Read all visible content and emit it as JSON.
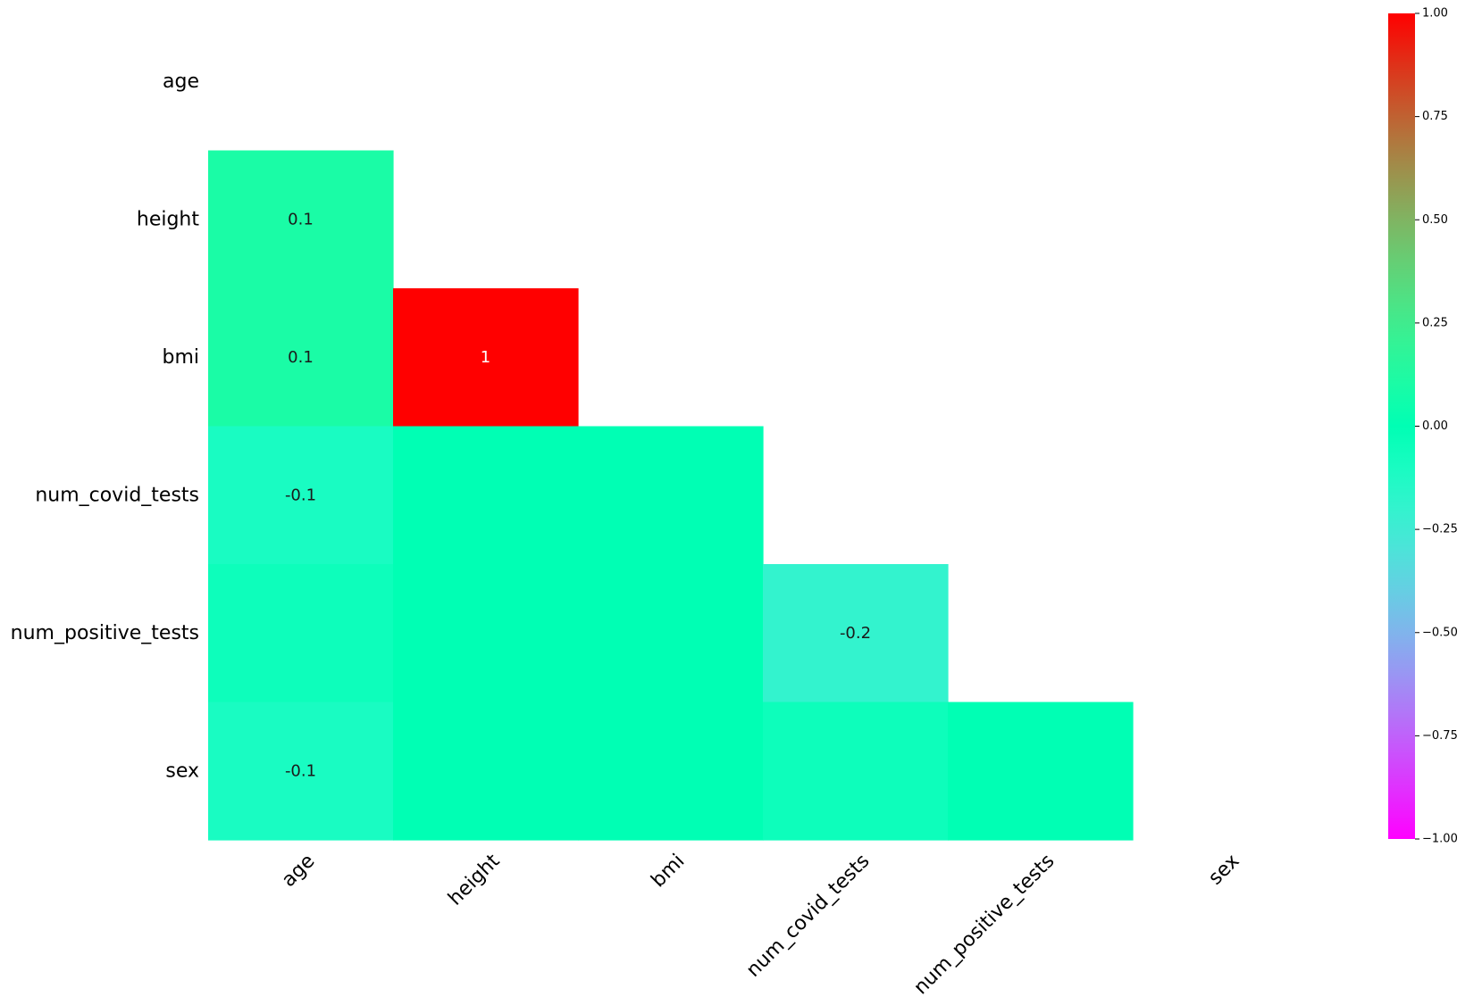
{
  "chart_data": {
    "type": "heatmap",
    "variables": [
      "age",
      "height",
      "bmi",
      "num_covid_tests",
      "num_positive_tests",
      "sex"
    ],
    "mask": "upper-triangle-including-diagonal",
    "matrix": [
      [
        null,
        null,
        null,
        null,
        null,
        null
      ],
      [
        0.1,
        null,
        null,
        null,
        null,
        null
      ],
      [
        0.1,
        1.0,
        null,
        null,
        null,
        null
      ],
      [
        -0.1,
        0.0,
        0.0,
        null,
        null,
        null
      ],
      [
        -0.05,
        0.0,
        0.0,
        -0.2,
        null,
        null
      ],
      [
        -0.1,
        0.0,
        0.0,
        -0.05,
        0.0,
        null
      ]
    ],
    "cell_labels": [
      [
        null,
        null,
        null,
        null,
        null,
        null
      ],
      [
        "0.1",
        null,
        null,
        null,
        null,
        null
      ],
      [
        "0.1",
        "1",
        null,
        null,
        null,
        null
      ],
      [
        "-0.1",
        null,
        null,
        null,
        null,
        null
      ],
      [
        null,
        null,
        null,
        "-0.2",
        null,
        null
      ],
      [
        "-0.1",
        null,
        null,
        null,
        null,
        null
      ]
    ],
    "colorbar": {
      "colormap": "rainbow",
      "vmin": -1.0,
      "vmax": 1.0,
      "ticks": [
        -1.0,
        -0.75,
        -0.5,
        -0.25,
        0.0,
        0.25,
        0.5,
        0.75,
        1.0
      ],
      "tick_labels": [
        "−1.00",
        "−0.75",
        "−0.50",
        "−0.25",
        "0.00",
        "0.25",
        "0.50",
        "0.75",
        "1.00"
      ]
    },
    "title": "",
    "xlabel": "",
    "ylabel": ""
  }
}
